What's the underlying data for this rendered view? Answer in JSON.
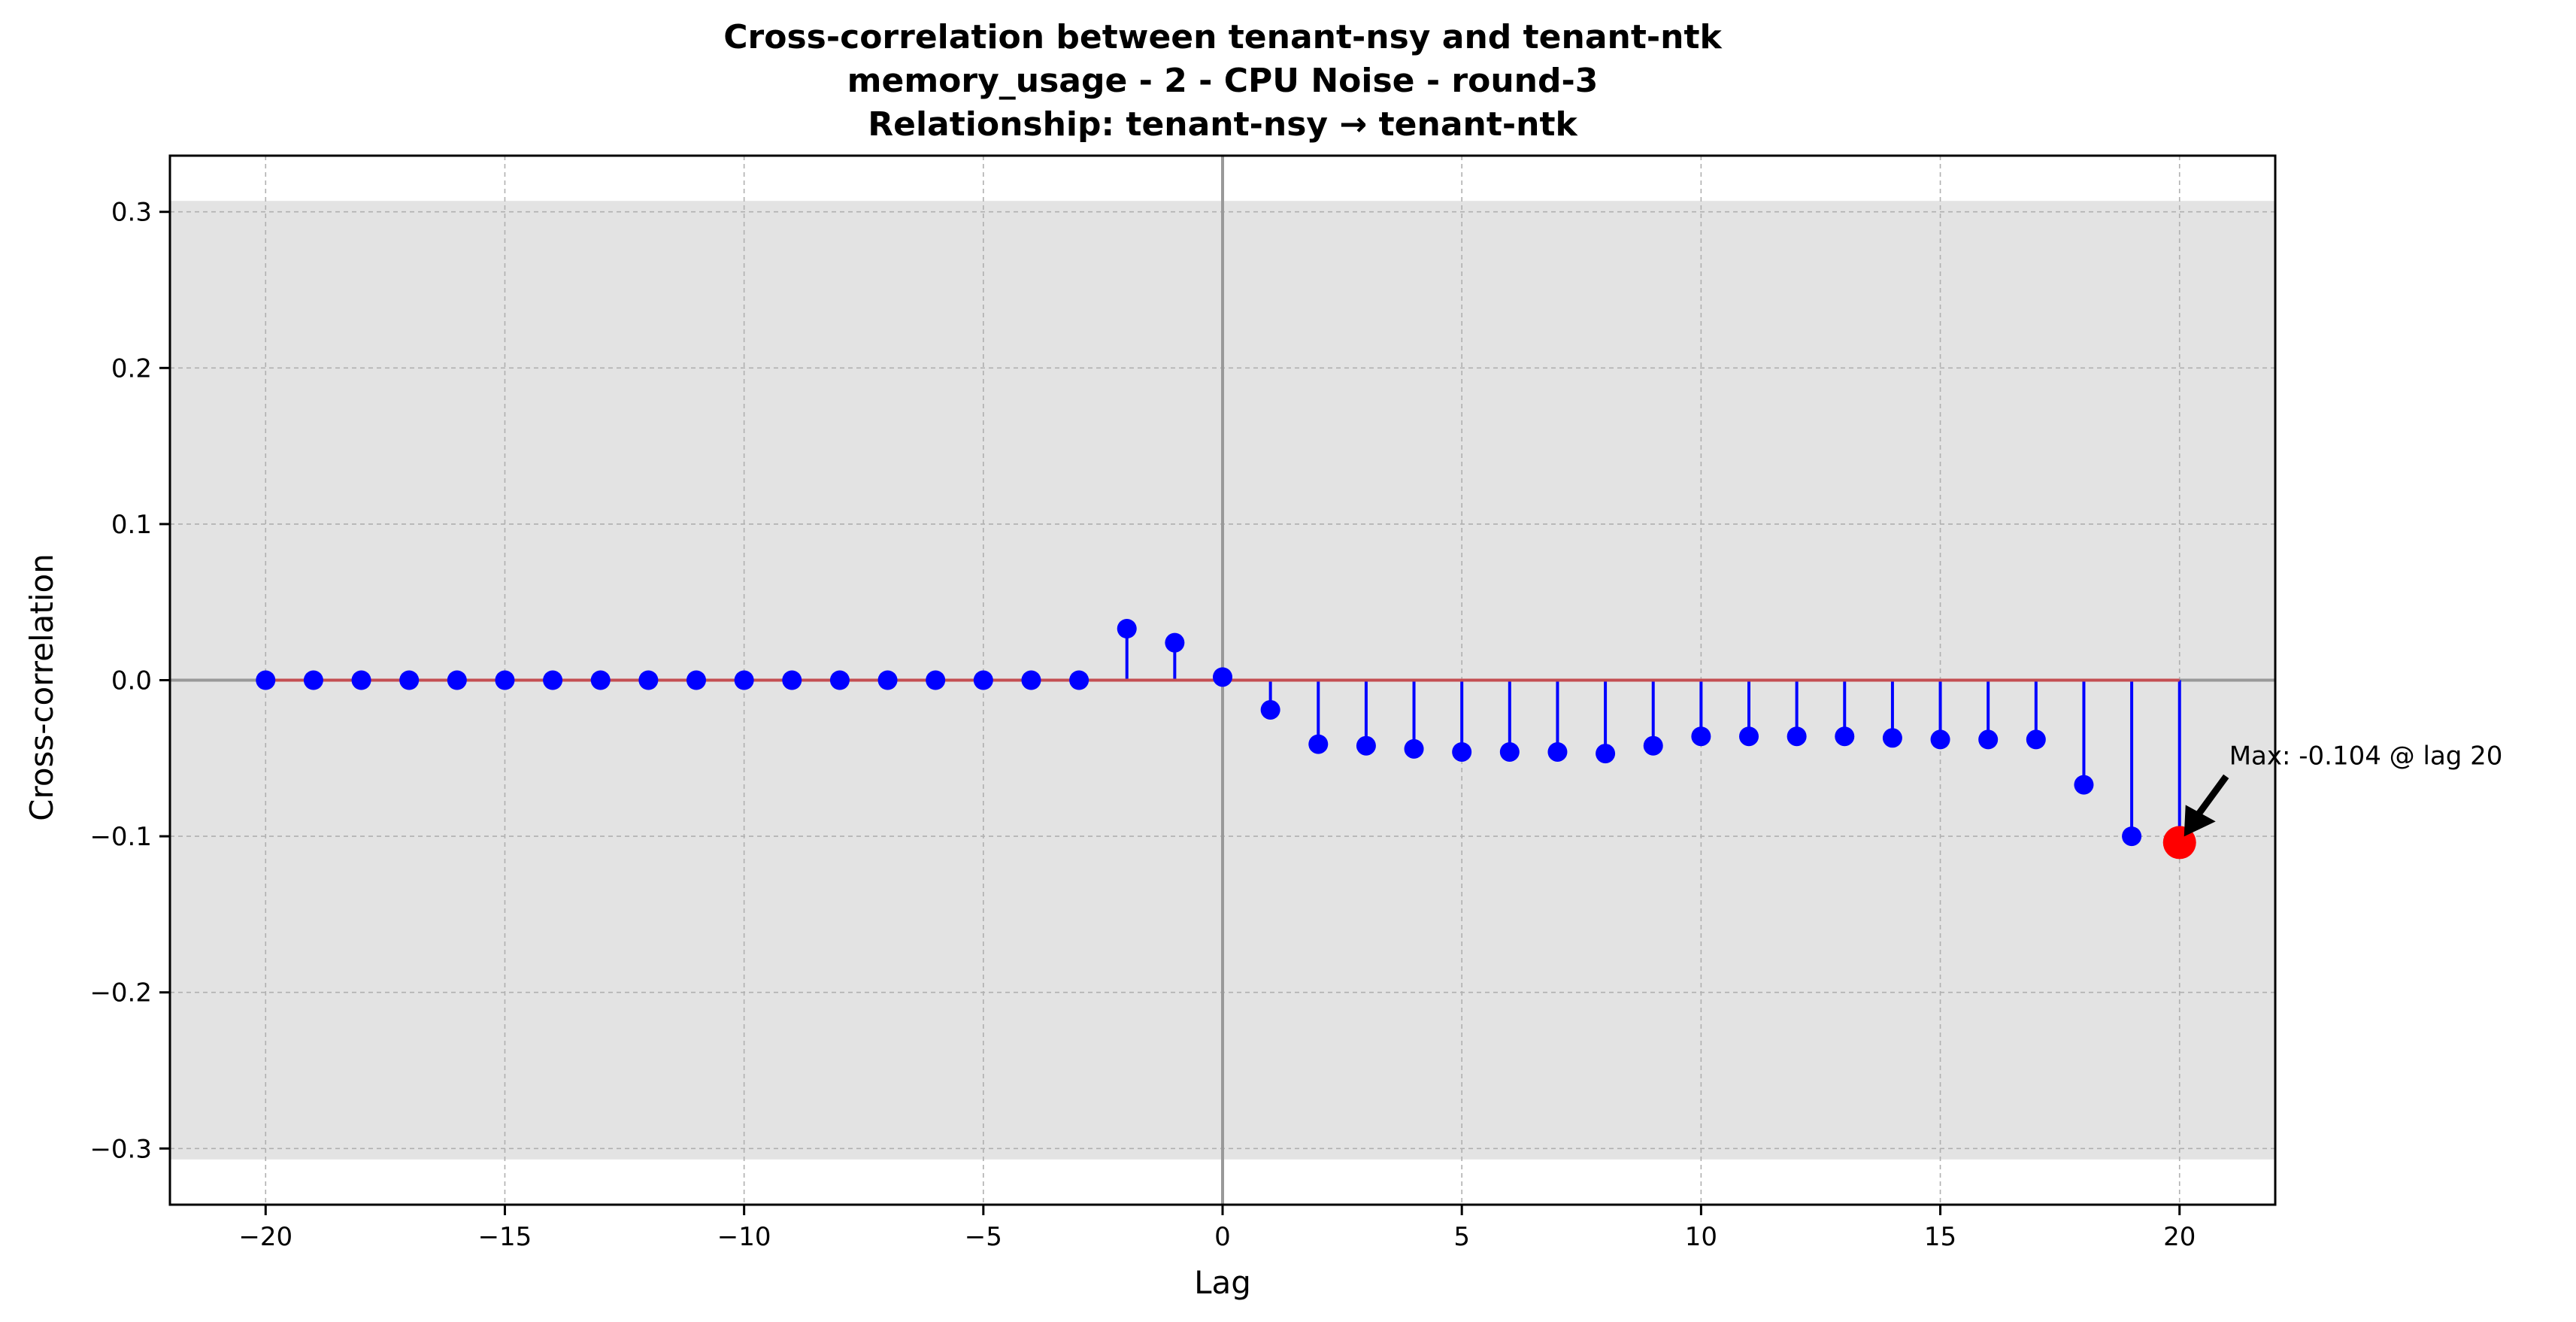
{
  "chart_data": {
    "type": "stem",
    "title_lines": [
      "Cross-correlation between tenant-nsy and tenant-ntk",
      "memory_usage - 2 - CPU Noise - round-3",
      "Relationship: tenant-nsy → tenant-ntk"
    ],
    "xlabel": "Lag",
    "ylabel": "Cross-correlation",
    "xlim": [
      -22,
      22
    ],
    "ylim": [
      -0.336,
      0.336
    ],
    "x_ticks": [
      -20,
      -15,
      -10,
      -5,
      0,
      5,
      10,
      15,
      20
    ],
    "x_tick_labels": [
      "−20",
      "−15",
      "−10",
      "−5",
      "0",
      "5",
      "10",
      "15",
      "20"
    ],
    "y_ticks": [
      0.3,
      0.2,
      0.1,
      0.0,
      -0.1,
      -0.2,
      -0.3
    ],
    "y_tick_labels": [
      "0.3",
      "0.2",
      "0.1",
      "0.0",
      "−0.1",
      "−0.2",
      "−0.3"
    ],
    "grid": true,
    "confidence_band": [
      -0.307,
      0.307
    ],
    "lags": [
      -20,
      -19,
      -18,
      -17,
      -16,
      -15,
      -14,
      -13,
      -12,
      -11,
      -10,
      -9,
      -8,
      -7,
      -6,
      -5,
      -4,
      -3,
      -2,
      -1,
      0,
      1,
      2,
      3,
      4,
      5,
      6,
      7,
      8,
      9,
      10,
      11,
      12,
      13,
      14,
      15,
      16,
      17,
      18,
      19,
      20
    ],
    "values": [
      0,
      0,
      0,
      0,
      0,
      0,
      0,
      0,
      0,
      0,
      0,
      0,
      0,
      0,
      0,
      0,
      0,
      0,
      0.033,
      0.024,
      0.002,
      -0.019,
      -0.041,
      -0.042,
      -0.044,
      -0.046,
      -0.046,
      -0.046,
      -0.047,
      -0.042,
      -0.036,
      -0.036,
      -0.036,
      -0.036,
      -0.037,
      -0.038,
      -0.038,
      -0.038,
      -0.067,
      -0.1,
      -0.104
    ],
    "max_point": {
      "lag": 20,
      "value": -0.104
    },
    "annotation": "Max: -0.104 @ lag 20",
    "colors": {
      "stem": "#0000ff",
      "baseline": "#c44e52",
      "max_marker": "#ff0000",
      "band": "#e3e3e3",
      "zero_lines": "#999999",
      "grid": "#b0b0b0"
    }
  }
}
